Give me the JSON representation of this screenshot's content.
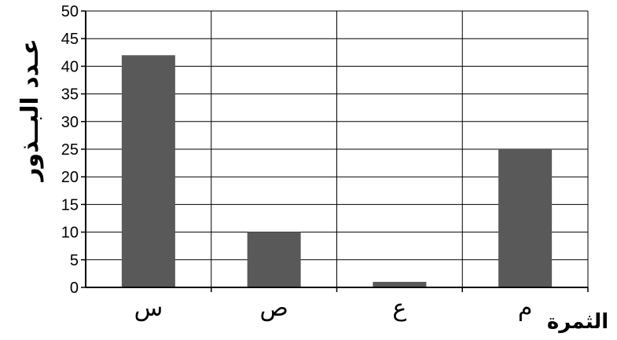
{
  "chart_data": {
    "type": "bar",
    "categories": [
      "س",
      "ص",
      "ع",
      "م"
    ],
    "values": [
      42,
      10,
      1,
      25
    ],
    "xlabel": "الثمرة",
    "ylabel": "عـدد البــذور",
    "ylim": [
      0,
      50
    ],
    "yticks": [
      0,
      5,
      10,
      15,
      20,
      25,
      30,
      35,
      40,
      45,
      50
    ],
    "grid": true,
    "bar_color": "#595959"
  }
}
